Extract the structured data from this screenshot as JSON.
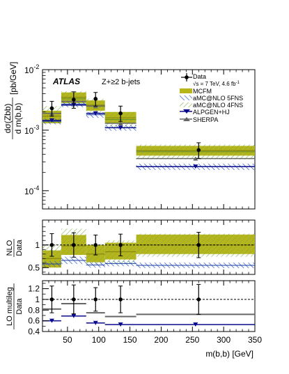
{
  "chart_data": [
    {
      "panel": "main",
      "type": "step",
      "experiment": "ATLAS",
      "process": "Z+≥2 b-jets",
      "ylabel_top": "dσ(Zbb)",
      "ylabel_bottom": "d m(b,b)",
      "ylabel_units": "[pb/GeV]",
      "yscale": "log",
      "ylim": [
        5e-05,
        0.01
      ],
      "yticks": [
        {
          "value": 0.01,
          "base": "10",
          "exp": "-2"
        },
        {
          "value": 0.001,
          "base": "10",
          "exp": "-3"
        },
        {
          "value": 0.0001,
          "base": "10",
          "exp": "-4"
        }
      ],
      "bins": [
        [
          10,
          40
        ],
        [
          40,
          80
        ],
        [
          80,
          110
        ],
        [
          110,
          160
        ],
        [
          160,
          350
        ]
      ],
      "data": {
        "name": "Data",
        "note": "√s = 7 TeV, 4.6 fb",
        "note_sup": "-1",
        "x": [
          25,
          60,
          95,
          135,
          260
        ],
        "y": [
          0.0023,
          0.0032,
          0.0033,
          0.0019,
          0.00047
        ],
        "err_lo": [
          0.0006,
          0.0009,
          0.0008,
          0.0005,
          0.00013
        ],
        "err_hi": [
          0.0007,
          0.0011,
          0.0009,
          0.0006,
          0.00015
        ]
      },
      "series": [
        {
          "name": "MCFM",
          "style": "band",
          "color": "#b7b51a",
          "values": [
            0.0017,
            0.0035,
            0.0026,
            0.0016,
            0.00046
          ],
          "band_lo": [
            0.0013,
            0.0028,
            0.0021,
            0.0013,
            0.00038
          ],
          "band_hi": [
            0.0021,
            0.0042,
            0.0031,
            0.002,
            0.00055
          ]
        },
        {
          "name": "aMC@NLO 5FNS",
          "style": "hatch",
          "color": "#2a56c6",
          "values": [
            0.0014,
            0.0027,
            0.0018,
            0.0011,
            0.00025
          ],
          "band_lo": [
            0.00125,
            0.0024,
            0.0016,
            0.00098,
            0.00022
          ],
          "band_hi": [
            0.00155,
            0.003,
            0.002,
            0.00122,
            0.00028
          ]
        },
        {
          "name": "aMC@NLO 4FNS",
          "style": "hatch",
          "color": "#88b848",
          "values": [
            0.0019,
            0.0033,
            0.0025,
            0.0015,
            0.00044
          ],
          "band_lo": [
            0.0013,
            0.0025,
            0.0019,
            0.0011,
            0.00033
          ],
          "band_hi": [
            0.0025,
            0.0044,
            0.0033,
            0.002,
            0.00058
          ]
        },
        {
          "name": "ALPGEN+HJ",
          "style": "line-marker",
          "marker": "triangle-down",
          "color": "#0a0a8c",
          "values": [
            0.00145,
            0.0026,
            0.0019,
            0.0011,
            0.00025
          ]
        },
        {
          "name": "SHERPA",
          "style": "line-marker",
          "marker": "triangle-up",
          "color": "#666666",
          "values": [
            0.0019,
            0.003,
            0.0025,
            0.0013,
            0.00034
          ]
        }
      ]
    },
    {
      "panel": "nlo_ratio",
      "type": "step",
      "ylabel_top": "NLO",
      "ylabel_bottom": "Data",
      "ylim": [
        0.35,
        1.55
      ],
      "yticks": [
        "1",
        "0.5"
      ],
      "bins": [
        [
          10,
          40
        ],
        [
          40,
          80
        ],
        [
          80,
          110
        ],
        [
          110,
          160
        ],
        [
          160,
          350
        ]
      ],
      "data": {
        "x": [
          25,
          60,
          95,
          135,
          260
        ],
        "y": [
          1,
          1,
          1,
          1,
          1
        ],
        "err_lo": [
          0.25,
          0.27,
          0.22,
          0.24,
          0.28
        ],
        "err_hi": [
          0.25,
          0.27,
          0.22,
          0.24,
          0.28
        ]
      },
      "series": [
        {
          "name": "MCFM",
          "values": [
            0.7,
            0.98,
            0.8,
            0.85,
            1.0
          ],
          "band_lo": [
            0.5,
            0.78,
            0.62,
            0.68,
            0.8
          ],
          "band_hi": [
            0.88,
            1.22,
            1.0,
            1.05,
            1.23
          ]
        },
        {
          "name": "aMC@NLO 5FNS",
          "values": [
            0.58,
            0.66,
            0.56,
            0.59,
            0.55
          ],
          "band_lo": [
            0.52,
            0.58,
            0.5,
            0.53,
            0.49
          ],
          "band_hi": [
            0.64,
            0.74,
            0.62,
            0.65,
            0.61
          ]
        },
        {
          "name": "aMC@NLO 4FNS",
          "values": [
            0.78,
            1.0,
            0.78,
            0.84,
            0.98
          ],
          "band_lo": [
            0.56,
            0.78,
            0.58,
            0.6,
            0.74
          ],
          "band_hi": [
            1.02,
            1.36,
            1.02,
            1.1,
            1.25
          ]
        }
      ]
    },
    {
      "panel": "lo_ratio",
      "type": "step",
      "ylabel_top": "LO multileg",
      "ylabel_bottom": "Data",
      "ylim": [
        0.4,
        1.35
      ],
      "yticks": [
        "1.2",
        "1",
        "0.8",
        "0.6",
        "0.4"
      ],
      "xlabel": "m(b,b) [GeV]",
      "xlim": [
        10,
        350
      ],
      "xticks": [
        50,
        100,
        150,
        200,
        250,
        300,
        350
      ],
      "bins": [
        [
          10,
          40
        ],
        [
          40,
          80
        ],
        [
          80,
          110
        ],
        [
          110,
          160
        ],
        [
          160,
          350
        ]
      ],
      "data": {
        "x": [
          25,
          60,
          95,
          135,
          260
        ],
        "y": [
          1,
          1,
          1,
          1,
          1
        ],
        "err_lo": [
          0.25,
          0.27,
          0.22,
          0.25,
          0.28
        ],
        "err_hi": [
          0.25,
          0.27,
          0.22,
          0.25,
          0.28
        ]
      },
      "series": [
        {
          "name": "ALPGEN+HJ",
          "values": [
            0.6,
            0.69,
            0.56,
            0.53,
            0.53
          ]
        },
        {
          "name": "SHERPA",
          "values": [
            0.82,
            0.92,
            0.75,
            0.68,
            0.72
          ]
        }
      ]
    }
  ]
}
